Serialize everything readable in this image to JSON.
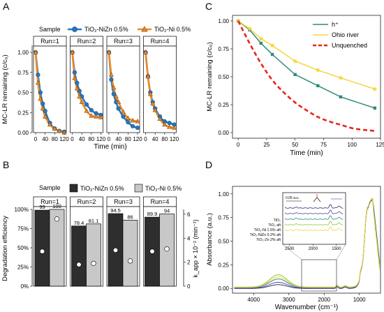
{
  "panel_labels": {
    "a": "A",
    "b": "B",
    "c": "C",
    "d": "D"
  },
  "colors": {
    "blue": "#2478c4",
    "orange": "#f08a24",
    "dark": "#2e2e2e",
    "light": "#c8c8c8",
    "teal": "#2e8b7a",
    "yellow": "#f3d63b",
    "red": "#e8231e"
  },
  "chart_data": [
    {
      "id": "A",
      "type": "scatter",
      "legend": {
        "title": "Sample",
        "entries": [
          "TiO₂-NiZn 0.5%",
          "TiO₂-Ni 0.5%"
        ]
      },
      "xlabel": "Time (min)",
      "ylabel": "MC-LR remaining (c/c₀)",
      "xlim": [
        0,
        120
      ],
      "ylim": [
        0,
        1
      ],
      "xticks": [
        "0",
        "40",
        "80",
        "120"
      ],
      "yticks": [
        "0.00",
        "0.25",
        "0.50",
        "0.75",
        "1.00"
      ],
      "runs": [
        {
          "label": "Run=1",
          "niZn": {
            "x": [
              0,
              10,
              20,
              30,
              40,
              60,
              80,
              100,
              120
            ],
            "y": [
              1.0,
              0.72,
              0.5,
              0.36,
              0.27,
              0.12,
              0.05,
              0.02,
              0.01
            ]
          },
          "ni": {
            "x": [
              0,
              10,
              20,
              30,
              40,
              60,
              80,
              100,
              120
            ],
            "y": [
              1.0,
              0.62,
              0.42,
              0.3,
              0.2,
              0.1,
              0.05,
              0.02,
              0.0
            ]
          }
        },
        {
          "label": "Run=2",
          "niZn": {
            "x": [
              0,
              10,
              20,
              30,
              40,
              60,
              80,
              100,
              120
            ],
            "y": [
              1.0,
              0.75,
              0.62,
              0.52,
              0.45,
              0.35,
              0.28,
              0.24,
              0.22
            ]
          },
          "ni": {
            "x": [
              0,
              10,
              20,
              30,
              40,
              60,
              80,
              100,
              120
            ],
            "y": [
              1.0,
              0.68,
              0.55,
              0.45,
              0.38,
              0.27,
              0.21,
              0.2,
              0.19
            ]
          }
        },
        {
          "label": "Run=3",
          "niZn": {
            "x": [
              0,
              10,
              20,
              30,
              40,
              60,
              80,
              100,
              120
            ],
            "y": [
              1.0,
              0.66,
              0.48,
              0.38,
              0.3,
              0.2,
              0.13,
              0.08,
              0.06
            ]
          },
          "ni": {
            "x": [
              0,
              10,
              20,
              30,
              40,
              60,
              80,
              100,
              120
            ],
            "y": [
              1.0,
              0.72,
              0.56,
              0.45,
              0.38,
              0.26,
              0.18,
              0.15,
              0.14
            ]
          }
        },
        {
          "label": "Run=4",
          "niZn": {
            "x": [
              0,
              10,
              20,
              30,
              40,
              60,
              80,
              100,
              120
            ],
            "y": [
              1.0,
              0.7,
              0.5,
              0.38,
              0.3,
              0.2,
              0.14,
              0.12,
              0.1
            ]
          },
          "ni": {
            "x": [
              0,
              10,
              20,
              30,
              40,
              60,
              80,
              100,
              120
            ],
            "y": [
              1.0,
              0.7,
              0.48,
              0.36,
              0.28,
              0.17,
              0.1,
              0.07,
              0.06
            ]
          }
        }
      ]
    },
    {
      "id": "B",
      "type": "bar",
      "legend": {
        "title": "Sample",
        "entries": [
          "TiO₂-NiZn 0.5%",
          "TiO₂-Ni 0.5%"
        ]
      },
      "ylabel": "Degradation efficiency",
      "ylabel_right": "k_app × 10⁻² (min⁻¹)",
      "yticks": [
        "0%",
        "25%",
        "50%",
        "75%",
        "100%"
      ],
      "yticks_right": [
        "0",
        "2",
        "4",
        "6"
      ],
      "ylim": [
        0,
        100
      ],
      "ylim_right": [
        0,
        6.4
      ],
      "runs": [
        {
          "label": "Run=1",
          "values": [
            99,
            100
          ],
          "value_labels": [
            "99",
            "100"
          ],
          "kapp": [
            2.9,
            5.6
          ]
        },
        {
          "label": "Run=2",
          "values": [
            78.4,
            81.1
          ],
          "value_labels": [
            "78.4",
            "81.1"
          ],
          "kapp": [
            1.8,
            1.9
          ]
        },
        {
          "label": "Run=3",
          "values": [
            94.5,
            86
          ],
          "value_labels": [
            "94.5",
            "86"
          ],
          "kapp": [
            3.0,
            2.1
          ]
        },
        {
          "label": "Run=4",
          "values": [
            89.9,
            94
          ],
          "value_labels": [
            "89.9",
            "94"
          ],
          "kapp": [
            2.9,
            3.1
          ]
        }
      ]
    },
    {
      "id": "C",
      "type": "line",
      "xlabel": "Time (min)",
      "ylabel": "MC-LR remaining (c/c₀)",
      "xlim": [
        -5,
        125
      ],
      "ylim": [
        -0.05,
        1.05
      ],
      "xticks": [
        "0",
        "25",
        "50",
        "75",
        "100",
        "125"
      ],
      "yticks": [
        "0.00",
        "0.25",
        "0.50",
        "0.75",
        "1.00"
      ],
      "series": [
        {
          "name": "h⁺",
          "x": [
            0,
            10,
            20,
            30,
            50,
            70,
            90,
            120
          ],
          "y": [
            1.0,
            0.92,
            0.8,
            0.7,
            0.52,
            0.42,
            0.32,
            0.22
          ]
        },
        {
          "name": "Ohio river",
          "x": [
            0,
            10,
            20,
            30,
            50,
            70,
            90,
            120
          ],
          "y": [
            1.0,
            0.93,
            0.84,
            0.78,
            0.64,
            0.56,
            0.49,
            0.39
          ]
        },
        {
          "name": "Unquenched",
          "x": [
            0,
            10,
            20,
            30,
            40,
            50,
            60,
            70,
            80,
            90,
            100,
            110,
            120
          ],
          "y": [
            1.0,
            0.8,
            0.62,
            0.47,
            0.36,
            0.27,
            0.2,
            0.14,
            0.1,
            0.07,
            0.04,
            0.025,
            0.015
          ]
        }
      ]
    },
    {
      "id": "D",
      "type": "line",
      "xlabel": "Wavenumber (cm⁻¹)",
      "ylabel": "Absorbance (a.u.)",
      "xlim": [
        4600,
        400
      ],
      "ylim": [
        -0.05,
        1.08
      ],
      "xticks": [
        "4000",
        "3000",
        "2000",
        "1000"
      ],
      "yticks": [
        "0.00",
        "0.25",
        "0.50",
        "0.75",
        "1.00"
      ],
      "inset": {
        "labels": [
          "TiO₂",
          "TiO₂ aft",
          "TiO₂-Ni 1.5% aft",
          "TiO₂-NiZn 0.2% aft",
          "TiO₂-Zn 2% aft"
        ],
        "scale_label": "0.05 a.u.",
        "xticks": [
          "2500",
          "2000",
          "1500"
        ]
      }
    }
  ]
}
